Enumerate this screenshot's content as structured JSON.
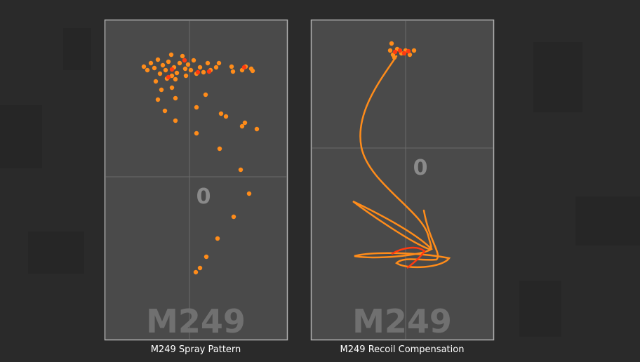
{
  "panels": [
    {
      "zero": "0",
      "weapon": "M249",
      "caption": "M249 Spray Pattern"
    },
    {
      "zero": "0",
      "weapon": "M249",
      "caption": "M249 Recoil Compensation"
    }
  ]
}
